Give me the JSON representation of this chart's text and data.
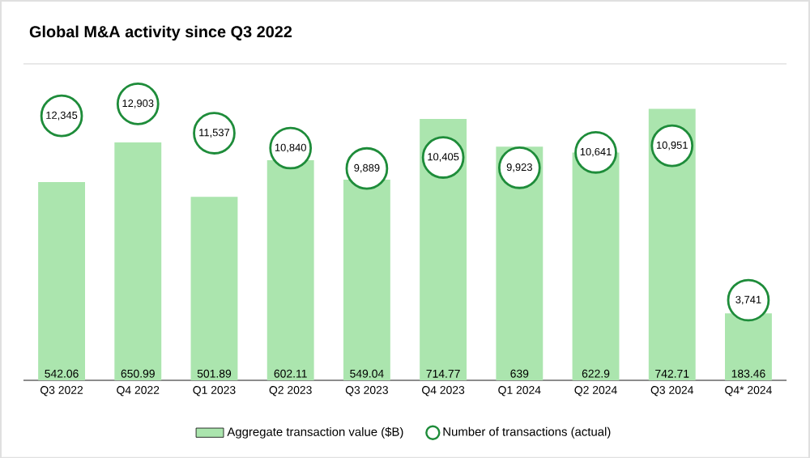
{
  "chart_data": {
    "type": "bar",
    "title": "Global M&A activity since Q3 2022",
    "categories": [
      "Q3 2022",
      "Q4 2022",
      "Q1 2023",
      "Q2 2023",
      "Q3 2023",
      "Q4 2023",
      "Q1 2024",
      "Q2 2024",
      "Q3 2024",
      "Q4* 2024"
    ],
    "series": [
      {
        "name": "Aggregate transaction value ($B)",
        "color": "#abe5ae",
        "values": [
          542.06,
          650.99,
          501.89,
          602.11,
          549.04,
          714.77,
          639,
          622.9,
          742.71,
          183.46
        ]
      },
      {
        "name": "Number of transactions (actual)",
        "type": "scatter",
        "axis": "y2",
        "color": "#1e8c3a",
        "values": [
          12345,
          12903,
          11537,
          10840,
          9889,
          10405,
          9923,
          10641,
          10951,
          3741
        ],
        "value_labels": [
          "12,345",
          "12,903",
          "11,537",
          "10,840",
          "9,889",
          "10,405",
          "9,923",
          "10,641",
          "10,951",
          "3,741"
        ]
      }
    ],
    "data_labels": true,
    "legend": "bottom",
    "marker": "circle",
    "tick_labels": "x"
  }
}
